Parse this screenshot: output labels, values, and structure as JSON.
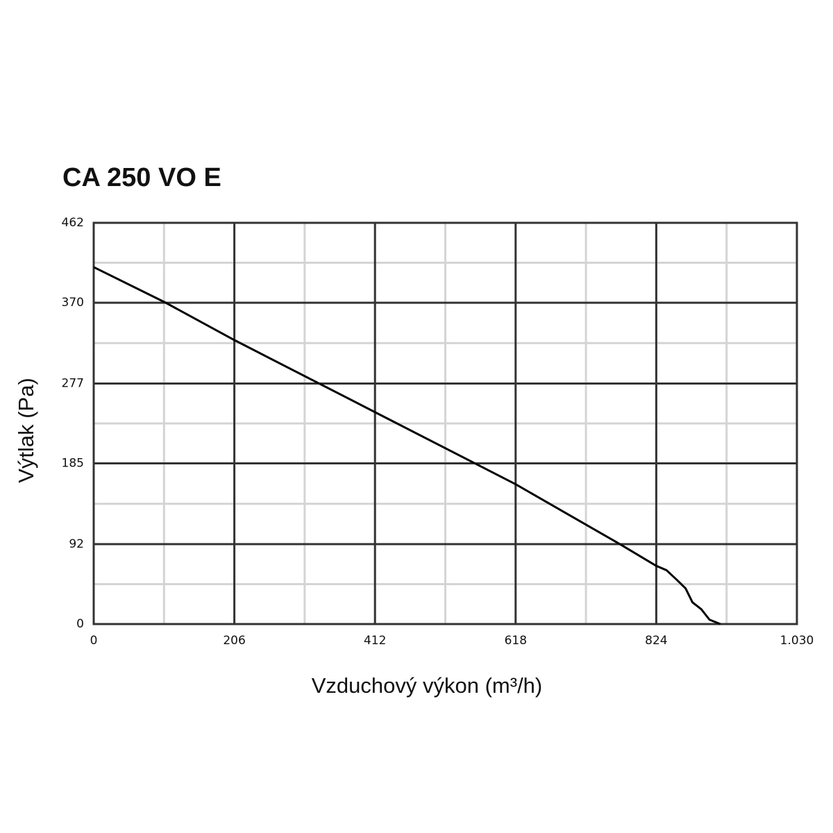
{
  "chart_data": {
    "type": "line",
    "title": "CA 250 VO E",
    "x_label": "Vzduchový výkon (m³/h)",
    "y_label": "Výtlak (Pa)",
    "x": [
      0,
      103,
      206,
      412,
      618,
      773,
      824,
      839,
      854,
      867,
      877,
      890,
      898,
      902,
      918
    ],
    "y": [
      411,
      371,
      327,
      244,
      161,
      91,
      67,
      62,
      51,
      41,
      25,
      17,
      9,
      5,
      0
    ],
    "color": "#000000",
    "xlim": [
      0,
      1030
    ],
    "xticks": [
      0,
      206,
      412,
      618,
      824,
      {
        "value": 1030,
        "label": "1.030"
      }
    ],
    "ylim": [
      0,
      462
    ],
    "yticks": [
      0,
      92,
      185,
      277,
      370,
      462
    ],
    "grid": true
  }
}
